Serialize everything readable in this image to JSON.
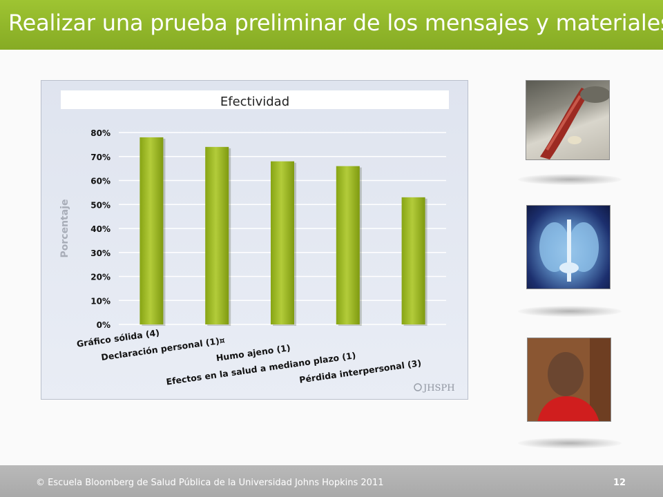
{
  "slide": {
    "title": "Realizar una prueba preliminar de los mensajes y materiales",
    "footer": "Escuela Bloomberg de Salud Pública de la Universidad Johns Hopkins 2011",
    "page_number": "12",
    "accent_color": "#93b82a"
  },
  "chart_data": {
    "type": "bar",
    "title": "Efectividad",
    "ylabel": "Porcentaje",
    "xlabel": "",
    "categories": [
      "Gráfico sólida (4)",
      "Declaración personal (1)¤",
      "Humo ajeno (1)",
      "Efectos en la salud a mediano plazo (1)",
      "Pérdida interpersonal (3)"
    ],
    "values": [
      78,
      74,
      68,
      66,
      53
    ],
    "ylim": [
      0,
      80
    ],
    "yticks": [
      "0%",
      "10%",
      "20%",
      "30%",
      "40%",
      "50%",
      "60%",
      "70%",
      "80%"
    ],
    "grid": true,
    "bar_color": "#9ab81e",
    "watermark": "JHSPH"
  },
  "icons": {
    "footer_copyright": "copyright-icon"
  }
}
